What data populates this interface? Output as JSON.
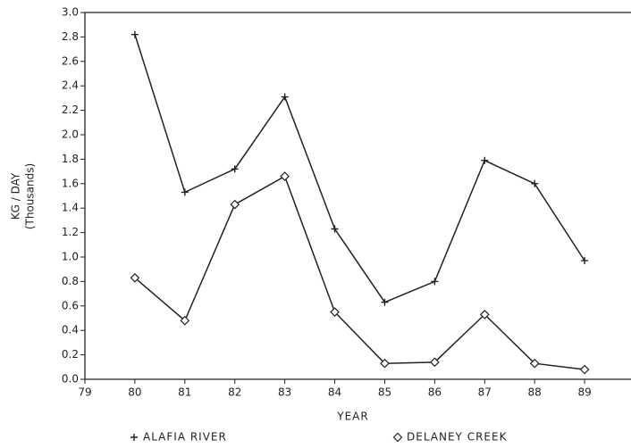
{
  "chart_data": {
    "type": "line",
    "ylabel": "KG / DAY",
    "ylabel_unit": "(Thousands)",
    "xlabel": "YEAR",
    "x": [
      80,
      81,
      82,
      83,
      84,
      85,
      86,
      87,
      88,
      89
    ],
    "series": [
      {
        "name": "ALAFIA RIVER",
        "color": "#222222",
        "marker": "plus",
        "values": [
          2.82,
          1.53,
          1.72,
          2.31,
          1.23,
          0.63,
          0.8,
          1.79,
          1.6,
          0.97
        ]
      },
      {
        "name": "DELANEY CREEK",
        "color": "#222222",
        "marker": "diamond",
        "values": [
          0.83,
          0.48,
          1.43,
          1.66,
          0.55,
          0.13,
          0.14,
          0.53,
          0.13,
          0.08
        ]
      }
    ],
    "xlim": [
      79,
      90
    ],
    "xticks": [
      79,
      80,
      81,
      82,
      83,
      84,
      85,
      86,
      87,
      88,
      89
    ],
    "ylim": [
      0,
      3
    ],
    "yticks": [
      {
        "value": 0,
        "label": "0.0"
      },
      0.2,
      0.4,
      0.6,
      0.8,
      {
        "value": 1,
        "label": "1.0"
      },
      1.2,
      1.4,
      1.6,
      1.8,
      {
        "value": 2,
        "label": "2.0"
      },
      2.2,
      2.4,
      2.6,
      2.8,
      {
        "value": 3,
        "label": "3.0"
      }
    ],
    "legend": "bottom"
  }
}
